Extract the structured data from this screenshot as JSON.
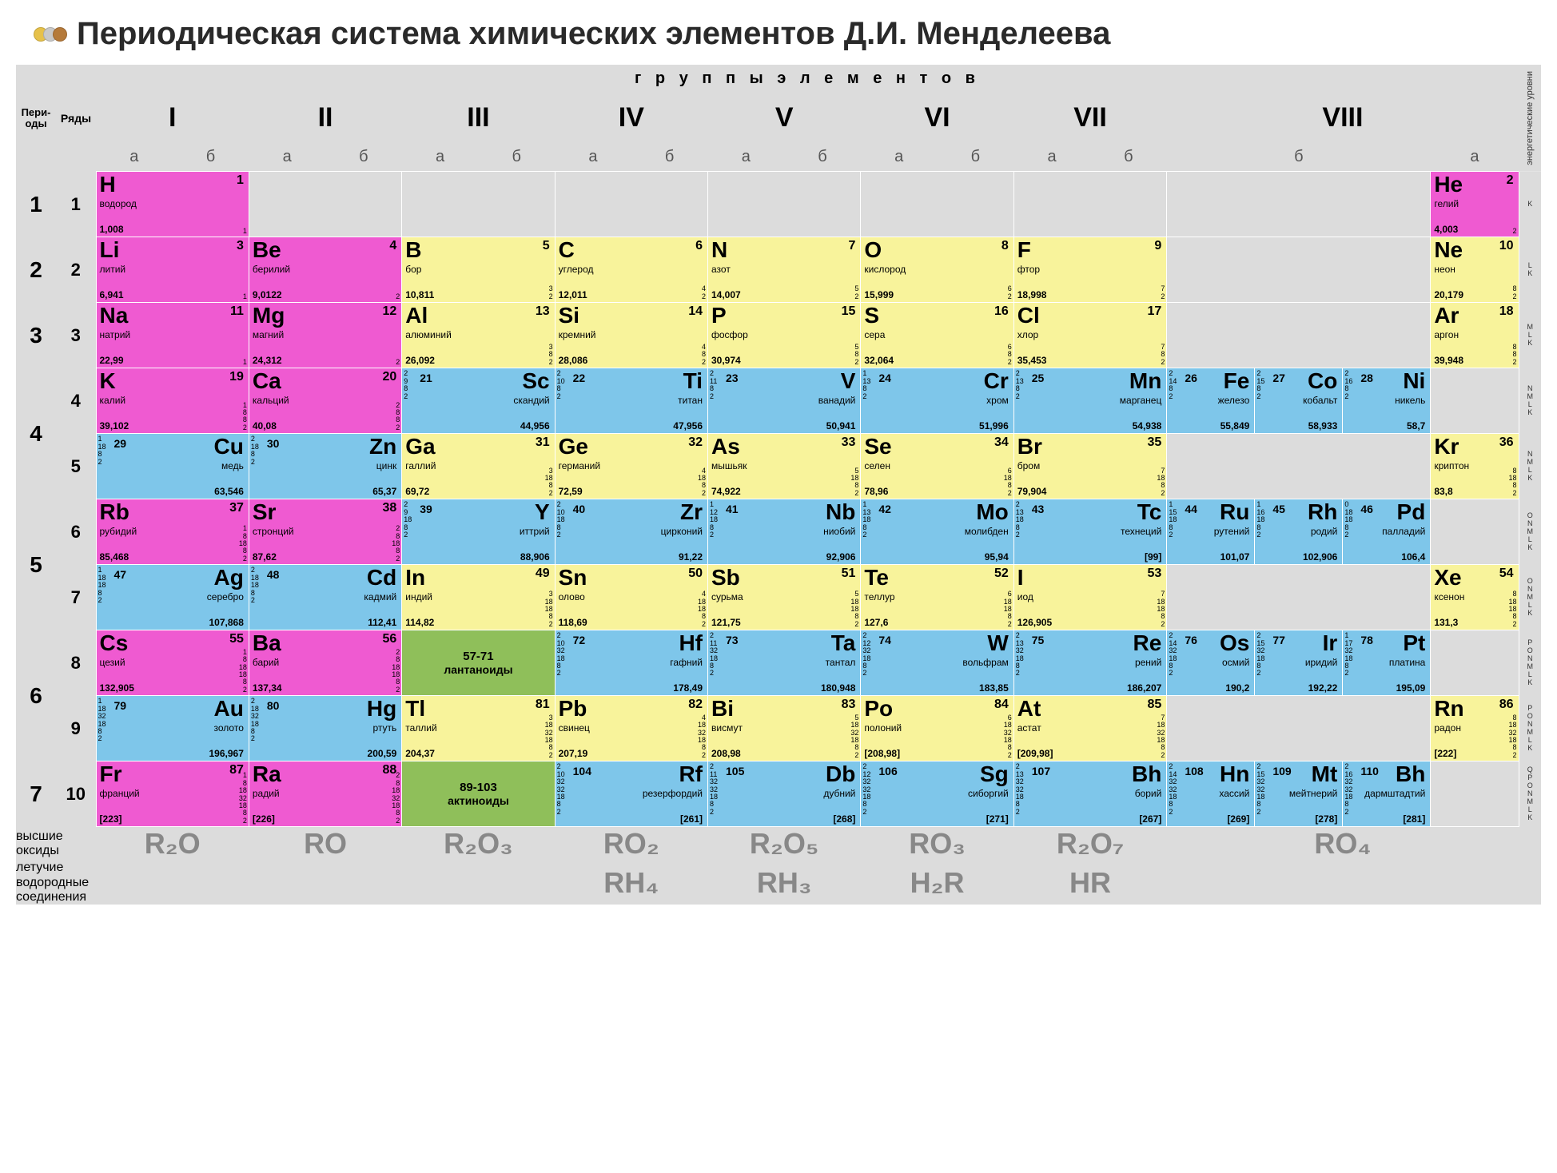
{
  "title": "Периодическая система химических элементов Д.И. Менделеева",
  "logo_colors": [
    "#e6c14a",
    "#b5b5b5",
    "#b57a3a"
  ],
  "headers": {
    "groups_title": "г р у п п ы   э л е м е н т о в",
    "periods": "Пери-\nоды",
    "rows": "Ряды",
    "energy_levels": "энергетические\nуровни",
    "romans": [
      "I",
      "II",
      "III",
      "IV",
      "V",
      "VI",
      "VII",
      "VIII"
    ],
    "ab": {
      "a": "а",
      "b": "б"
    }
  },
  "colors": {
    "grid_bg": "#dcdcdc",
    "pink": "#ef5ad1",
    "yellow": "#f8f39b",
    "blue": "#7ec6ea",
    "green": "#8fbf5a"
  },
  "side_levels": [
    "K",
    "L\nK",
    "M\nL\nK",
    "N\nM\nL\nK",
    "N\nM\nL\nK",
    "O\nN\nM\nL\nK",
    "O\nN\nM\nL\nK",
    "P\nO\nN\nM\nL\nK",
    "P\nO\nN\nM\nL\nK",
    "Q\nP\nO\nN\nM\nL\nK"
  ],
  "periods": [
    {
      "n": "1",
      "rows": [
        "1"
      ]
    },
    {
      "n": "2",
      "rows": [
        "2"
      ]
    },
    {
      "n": "3",
      "rows": [
        "3"
      ]
    },
    {
      "n": "4",
      "rows": [
        "4",
        "5"
      ]
    },
    {
      "n": "5",
      "rows": [
        "6",
        "7"
      ]
    },
    {
      "n": "6",
      "rows": [
        "8",
        "9"
      ]
    },
    {
      "n": "7",
      "rows": [
        "10"
      ]
    }
  ],
  "lanth": {
    "range": "57-71",
    "label": "лантаноиды"
  },
  "act": {
    "range": "89-103",
    "label": "актиноиды"
  },
  "footer": {
    "oxides_label": "высшие\nоксиды",
    "hydrides_label": "летучие\nводородные\nсоединения",
    "oxides": [
      "R₂O",
      "RO",
      "R₂O₃",
      "RO₂",
      "R₂O₅",
      "RO₃",
      "R₂O₇",
      "RO₄"
    ],
    "hydrides": [
      "",
      "",
      "",
      "RH₄",
      "RH₃",
      "H₂R",
      "HR",
      ""
    ]
  },
  "rows": {
    "1": [
      {
        "z": 1,
        "sym": "H",
        "name": "водород",
        "mass": "1,008",
        "shells": "1",
        "cls": "pink",
        "lay": "L"
      },
      null,
      null,
      null,
      null,
      null,
      null,
      null,
      null,
      null,
      {
        "z": 2,
        "sym": "He",
        "name": "гелий",
        "mass": "4,003",
        "shells": "2",
        "cls": "pink",
        "lay": "L"
      }
    ],
    "2": [
      {
        "z": 3,
        "sym": "Li",
        "name": "литий",
        "mass": "6,941",
        "shells": "1",
        "cls": "pink",
        "lay": "L"
      },
      {
        "z": 4,
        "sym": "Be",
        "name": "берилий",
        "mass": "9,0122",
        "shells": "2",
        "cls": "pink",
        "lay": "L"
      },
      {
        "z": 5,
        "sym": "B",
        "name": "бор",
        "mass": "10,811",
        "shells": "3\n2",
        "cls": "yellow",
        "lay": "L"
      },
      {
        "z": 6,
        "sym": "C",
        "name": "углерод",
        "mass": "12,011",
        "shells": "4\n2",
        "cls": "yellow",
        "lay": "L"
      },
      {
        "z": 7,
        "sym": "N",
        "name": "азот",
        "mass": "14,007",
        "shells": "5\n2",
        "cls": "yellow",
        "lay": "L"
      },
      {
        "z": 8,
        "sym": "O",
        "name": "кислород",
        "mass": "15,999",
        "shells": "6\n2",
        "cls": "yellow",
        "lay": "L"
      },
      {
        "z": 9,
        "sym": "F",
        "name": "фтор",
        "mass": "18,998",
        "shells": "7\n2",
        "cls": "yellow",
        "lay": "L"
      },
      null,
      null,
      null,
      {
        "z": 10,
        "sym": "Ne",
        "name": "неон",
        "mass": "20,179",
        "shells": "8\n2",
        "cls": "yellow",
        "lay": "L"
      }
    ],
    "3": [
      {
        "z": 11,
        "sym": "Na",
        "name": "натрий",
        "mass": "22,99",
        "shells": "1",
        "cls": "pink",
        "lay": "L"
      },
      {
        "z": 12,
        "sym": "Mg",
        "name": "магний",
        "mass": "24,312",
        "shells": "2",
        "cls": "pink",
        "lay": "L"
      },
      {
        "z": 13,
        "sym": "Al",
        "name": "алюминий",
        "mass": "26,092",
        "shells": "3\n8\n2",
        "cls": "yellow",
        "lay": "L"
      },
      {
        "z": 14,
        "sym": "Si",
        "name": "кремний",
        "mass": "28,086",
        "shells": "4\n8\n2",
        "cls": "yellow",
        "lay": "L"
      },
      {
        "z": 15,
        "sym": "P",
        "name": "фосфор",
        "mass": "30,974",
        "shells": "5\n8\n2",
        "cls": "yellow",
        "lay": "L"
      },
      {
        "z": 16,
        "sym": "S",
        "name": "сера",
        "mass": "32,064",
        "shells": "6\n8\n2",
        "cls": "yellow",
        "lay": "L"
      },
      {
        "z": 17,
        "sym": "Cl",
        "name": "хлор",
        "mass": "35,453",
        "shells": "7\n8\n2",
        "cls": "yellow",
        "lay": "L"
      },
      null,
      null,
      null,
      {
        "z": 18,
        "sym": "Ar",
        "name": "аргон",
        "mass": "39,948",
        "shells": "8\n8\n2",
        "cls": "yellow",
        "lay": "L"
      }
    ],
    "4": [
      {
        "z": 19,
        "sym": "K",
        "name": "калий",
        "mass": "39,102",
        "shells": "1\n8\n8\n2",
        "cls": "pink",
        "lay": "L"
      },
      {
        "z": 20,
        "sym": "Ca",
        "name": "кальций",
        "mass": "40,08",
        "shells": "2\n8\n8\n2",
        "cls": "pink",
        "lay": "L"
      },
      {
        "z": 21,
        "sym": "Sc",
        "name": "скандий",
        "mass": "44,956",
        "shells": "2\n9\n8\n2",
        "cls": "blue",
        "lay": "R"
      },
      {
        "z": 22,
        "sym": "Ti",
        "name": "титан",
        "mass": "47,956",
        "shells": "2\n10\n8\n2",
        "cls": "blue",
        "lay": "R"
      },
      {
        "z": 23,
        "sym": "V",
        "name": "ванадий",
        "mass": "50,941",
        "shells": "2\n11\n8\n2",
        "cls": "blue",
        "lay": "R"
      },
      {
        "z": 24,
        "sym": "Cr",
        "name": "хром",
        "mass": "51,996",
        "shells": "1\n13\n8\n2",
        "cls": "blue",
        "lay": "R"
      },
      {
        "z": 25,
        "sym": "Mn",
        "name": "марганец",
        "mass": "54,938",
        "shells": "2\n13\n8\n2",
        "cls": "blue",
        "lay": "R"
      },
      {
        "z": 26,
        "sym": "Fe",
        "name": "железо",
        "mass": "55,849",
        "shells": "2\n14\n8\n2",
        "cls": "blue",
        "lay": "R"
      },
      {
        "z": 27,
        "sym": "Co",
        "name": "кобальт",
        "mass": "58,933",
        "shells": "2\n15\n8\n2",
        "cls": "blue",
        "lay": "R"
      },
      {
        "z": 28,
        "sym": "Ni",
        "name": "никель",
        "mass": "58,7",
        "shells": "2\n16\n8\n2",
        "cls": "blue",
        "lay": "R"
      },
      null
    ],
    "5": [
      {
        "z": 29,
        "sym": "Cu",
        "name": "медь",
        "mass": "63,546",
        "shells": "1\n18\n8\n2",
        "cls": "blue",
        "lay": "R"
      },
      {
        "z": 30,
        "sym": "Zn",
        "name": "цинк",
        "mass": "65,37",
        "shells": "2\n18\n8\n2",
        "cls": "blue",
        "lay": "R"
      },
      {
        "z": 31,
        "sym": "Ga",
        "name": "галлий",
        "mass": "69,72",
        "shells": "3\n18\n8\n2",
        "cls": "yellow",
        "lay": "L"
      },
      {
        "z": 32,
        "sym": "Ge",
        "name": "германий",
        "mass": "72,59",
        "shells": "4\n18\n8\n2",
        "cls": "yellow",
        "lay": "L"
      },
      {
        "z": 33,
        "sym": "As",
        "name": "мышьяк",
        "mass": "74,922",
        "shells": "5\n18\n8\n2",
        "cls": "yellow",
        "lay": "L"
      },
      {
        "z": 34,
        "sym": "Se",
        "name": "селен",
        "mass": "78,96",
        "shells": "6\n18\n8\n2",
        "cls": "yellow",
        "lay": "L"
      },
      {
        "z": 35,
        "sym": "Br",
        "name": "бром",
        "mass": "79,904",
        "shells": "7\n18\n8\n2",
        "cls": "yellow",
        "lay": "L"
      },
      null,
      null,
      null,
      {
        "z": 36,
        "sym": "Kr",
        "name": "криптон",
        "mass": "83,8",
        "shells": "8\n18\n8\n2",
        "cls": "yellow",
        "lay": "L"
      }
    ],
    "6": [
      {
        "z": 37,
        "sym": "Rb",
        "name": "рубидий",
        "mass": "85,468",
        "shells": "1\n8\n18\n8\n2",
        "cls": "pink",
        "lay": "L"
      },
      {
        "z": 38,
        "sym": "Sr",
        "name": "стронций",
        "mass": "87,62",
        "shells": "2\n8\n18\n8\n2",
        "cls": "pink",
        "lay": "L"
      },
      {
        "z": 39,
        "sym": "Y",
        "name": "иттрий",
        "mass": "88,906",
        "shells": "2\n9\n18\n8\n2",
        "cls": "blue",
        "lay": "R"
      },
      {
        "z": 40,
        "sym": "Zr",
        "name": "цирконий",
        "mass": "91,22",
        "shells": "2\n10\n18\n8\n2",
        "cls": "blue",
        "lay": "R"
      },
      {
        "z": 41,
        "sym": "Nb",
        "name": "ниобий",
        "mass": "92,906",
        "shells": "1\n12\n18\n8\n2",
        "cls": "blue",
        "lay": "R"
      },
      {
        "z": 42,
        "sym": "Mo",
        "name": "молибден",
        "mass": "95,94",
        "shells": "1\n13\n18\n8\n2",
        "cls": "blue",
        "lay": "R"
      },
      {
        "z": 43,
        "sym": "Tc",
        "name": "технеций",
        "mass": "[99]",
        "shells": "2\n13\n18\n8\n2",
        "cls": "blue",
        "lay": "R"
      },
      {
        "z": 44,
        "sym": "Ru",
        "name": "рутений",
        "mass": "101,07",
        "shells": "1\n15\n18\n8\n2",
        "cls": "blue",
        "lay": "R"
      },
      {
        "z": 45,
        "sym": "Rh",
        "name": "родий",
        "mass": "102,906",
        "shells": "1\n16\n18\n8\n2",
        "cls": "blue",
        "lay": "R"
      },
      {
        "z": 46,
        "sym": "Pd",
        "name": "палладий",
        "mass": "106,4",
        "shells": "0\n18\n18\n8\n2",
        "cls": "blue",
        "lay": "R"
      },
      null
    ],
    "7": [
      {
        "z": 47,
        "sym": "Ag",
        "name": "серебро",
        "mass": "107,868",
        "shells": "1\n18\n18\n8\n2",
        "cls": "blue",
        "lay": "R"
      },
      {
        "z": 48,
        "sym": "Cd",
        "name": "кадмий",
        "mass": "112,41",
        "shells": "2\n18\n18\n8\n2",
        "cls": "blue",
        "lay": "R"
      },
      {
        "z": 49,
        "sym": "In",
        "name": "индий",
        "mass": "114,82",
        "shells": "3\n18\n18\n8\n2",
        "cls": "yellow",
        "lay": "L"
      },
      {
        "z": 50,
        "sym": "Sn",
        "name": "олово",
        "mass": "118,69",
        "shells": "4\n18\n18\n8\n2",
        "cls": "yellow",
        "lay": "L"
      },
      {
        "z": 51,
        "sym": "Sb",
        "name": "сурьма",
        "mass": "121,75",
        "shells": "5\n18\n18\n8\n2",
        "cls": "yellow",
        "lay": "L"
      },
      {
        "z": 52,
        "sym": "Te",
        "name": "теллур",
        "mass": "127,6",
        "shells": "6\n18\n18\n8\n2",
        "cls": "yellow",
        "lay": "L"
      },
      {
        "z": 53,
        "sym": "I",
        "name": "иод",
        "mass": "126,905",
        "shells": "7\n18\n18\n8\n2",
        "cls": "yellow",
        "lay": "L"
      },
      null,
      null,
      null,
      {
        "z": 54,
        "sym": "Xe",
        "name": "ксенон",
        "mass": "131,3",
        "shells": "8\n18\n18\n8\n2",
        "cls": "yellow",
        "lay": "L"
      }
    ],
    "8": [
      {
        "z": 55,
        "sym": "Cs",
        "name": "цезий",
        "mass": "132,905",
        "shells": "1\n8\n18\n18\n8\n2",
        "cls": "pink",
        "lay": "L"
      },
      {
        "z": 56,
        "sym": "Ba",
        "name": "барий",
        "mass": "137,34",
        "shells": "2\n8\n18\n18\n8\n2",
        "cls": "pink",
        "lay": "L"
      },
      {
        "special": "lanth"
      },
      {
        "z": 72,
        "sym": "Hf",
        "name": "гафний",
        "mass": "178,49",
        "shells": "2\n10\n32\n18\n8\n2",
        "cls": "blue",
        "lay": "R"
      },
      {
        "z": 73,
        "sym": "Ta",
        "name": "тантал",
        "mass": "180,948",
        "shells": "2\n11\n32\n18\n8\n2",
        "cls": "blue",
        "lay": "R"
      },
      {
        "z": 74,
        "sym": "W",
        "name": "вольфрам",
        "mass": "183,85",
        "shells": "2\n12\n32\n18\n8\n2",
        "cls": "blue",
        "lay": "R"
      },
      {
        "z": 75,
        "sym": "Re",
        "name": "рений",
        "mass": "186,207",
        "shells": "2\n13\n32\n18\n8\n2",
        "cls": "blue",
        "lay": "R"
      },
      {
        "z": 76,
        "sym": "Os",
        "name": "осмий",
        "mass": "190,2",
        "shells": "2\n14\n32\n18\n8\n2",
        "cls": "blue",
        "lay": "R"
      },
      {
        "z": 77,
        "sym": "Ir",
        "name": "иридий",
        "mass": "192,22",
        "shells": "2\n15\n32\n18\n8\n2",
        "cls": "blue",
        "lay": "R"
      },
      {
        "z": 78,
        "sym": "Pt",
        "name": "платина",
        "mass": "195,09",
        "shells": "1\n17\n32\n18\n8\n2",
        "cls": "blue",
        "lay": "R"
      },
      null
    ],
    "9": [
      {
        "z": 79,
        "sym": "Au",
        "name": "золото",
        "mass": "196,967",
        "shells": "1\n18\n32\n18\n8\n2",
        "cls": "blue",
        "lay": "R"
      },
      {
        "z": 80,
        "sym": "Hg",
        "name": "ртуть",
        "mass": "200,59",
        "shells": "2\n18\n32\n18\n8\n2",
        "cls": "blue",
        "lay": "R"
      },
      {
        "z": 81,
        "sym": "Tl",
        "name": "таллий",
        "mass": "204,37",
        "shells": "3\n18\n32\n18\n8\n2",
        "cls": "yellow",
        "lay": "L"
      },
      {
        "z": 82,
        "sym": "Pb",
        "name": "свинец",
        "mass": "207,19",
        "shells": "4\n18\n32\n18\n8\n2",
        "cls": "yellow",
        "lay": "L"
      },
      {
        "z": 83,
        "sym": "Bi",
        "name": "висмут",
        "mass": "208,98",
        "shells": "5\n18\n32\n18\n8\n2",
        "cls": "yellow",
        "lay": "L"
      },
      {
        "z": 84,
        "sym": "Po",
        "name": "полоний",
        "mass": "[208,98]",
        "shells": "6\n18\n32\n18\n8\n2",
        "cls": "yellow",
        "lay": "L"
      },
      {
        "z": 85,
        "sym": "At",
        "name": "астат",
        "mass": "[209,98]",
        "shells": "7\n18\n32\n18\n8\n2",
        "cls": "yellow",
        "lay": "L"
      },
      null,
      null,
      null,
      {
        "z": 86,
        "sym": "Rn",
        "name": "радон",
        "mass": "[222]",
        "shells": "8\n18\n32\n18\n8\n2",
        "cls": "yellow",
        "lay": "L"
      }
    ],
    "10": [
      {
        "z": 87,
        "sym": "Fr",
        "name": "франций",
        "mass": "[223]",
        "shells": "1\n8\n18\n32\n18\n8\n2",
        "cls": "pink",
        "lay": "L"
      },
      {
        "z": 88,
        "sym": "Ra",
        "name": "радий",
        "mass": "[226]",
        "shells": "2\n8\n18\n32\n18\n8\n2",
        "cls": "pink",
        "lay": "L"
      },
      {
        "special": "act"
      },
      {
        "z": 104,
        "sym": "Rf",
        "name": "резерфордий",
        "mass": "[261]",
        "shells": "2\n10\n32\n32\n18\n8\n2",
        "cls": "blue",
        "lay": "R"
      },
      {
        "z": 105,
        "sym": "Db",
        "name": "дубний",
        "mass": "[268]",
        "shells": "2\n11\n32\n32\n18\n8\n2",
        "cls": "blue",
        "lay": "R"
      },
      {
        "z": 106,
        "sym": "Sg",
        "name": "сиборгий",
        "mass": "[271]",
        "shells": "2\n12\n32\n32\n18\n8\n2",
        "cls": "blue",
        "lay": "R"
      },
      {
        "z": 107,
        "sym": "Bh",
        "name": "борий",
        "mass": "[267]",
        "shells": "2\n13\n32\n32\n18\n8\n2",
        "cls": "blue",
        "lay": "R"
      },
      {
        "z": 108,
        "sym": "Hn",
        "name": "хассий",
        "mass": "[269]",
        "shells": "2\n14\n32\n32\n18\n8\n2",
        "cls": "blue",
        "lay": "R"
      },
      {
        "z": 109,
        "sym": "Mt",
        "name": "мейтнерий",
        "mass": "[278]",
        "shells": "2\n15\n32\n32\n18\n8\n2",
        "cls": "blue",
        "lay": "R"
      },
      {
        "z": 110,
        "sym": "Bh",
        "name": "дармштадтий",
        "mass": "[281]",
        "shells": "2\n16\n32\n32\n18\n8\n2",
        "cls": "blue",
        "lay": "R"
      },
      null
    ]
  }
}
